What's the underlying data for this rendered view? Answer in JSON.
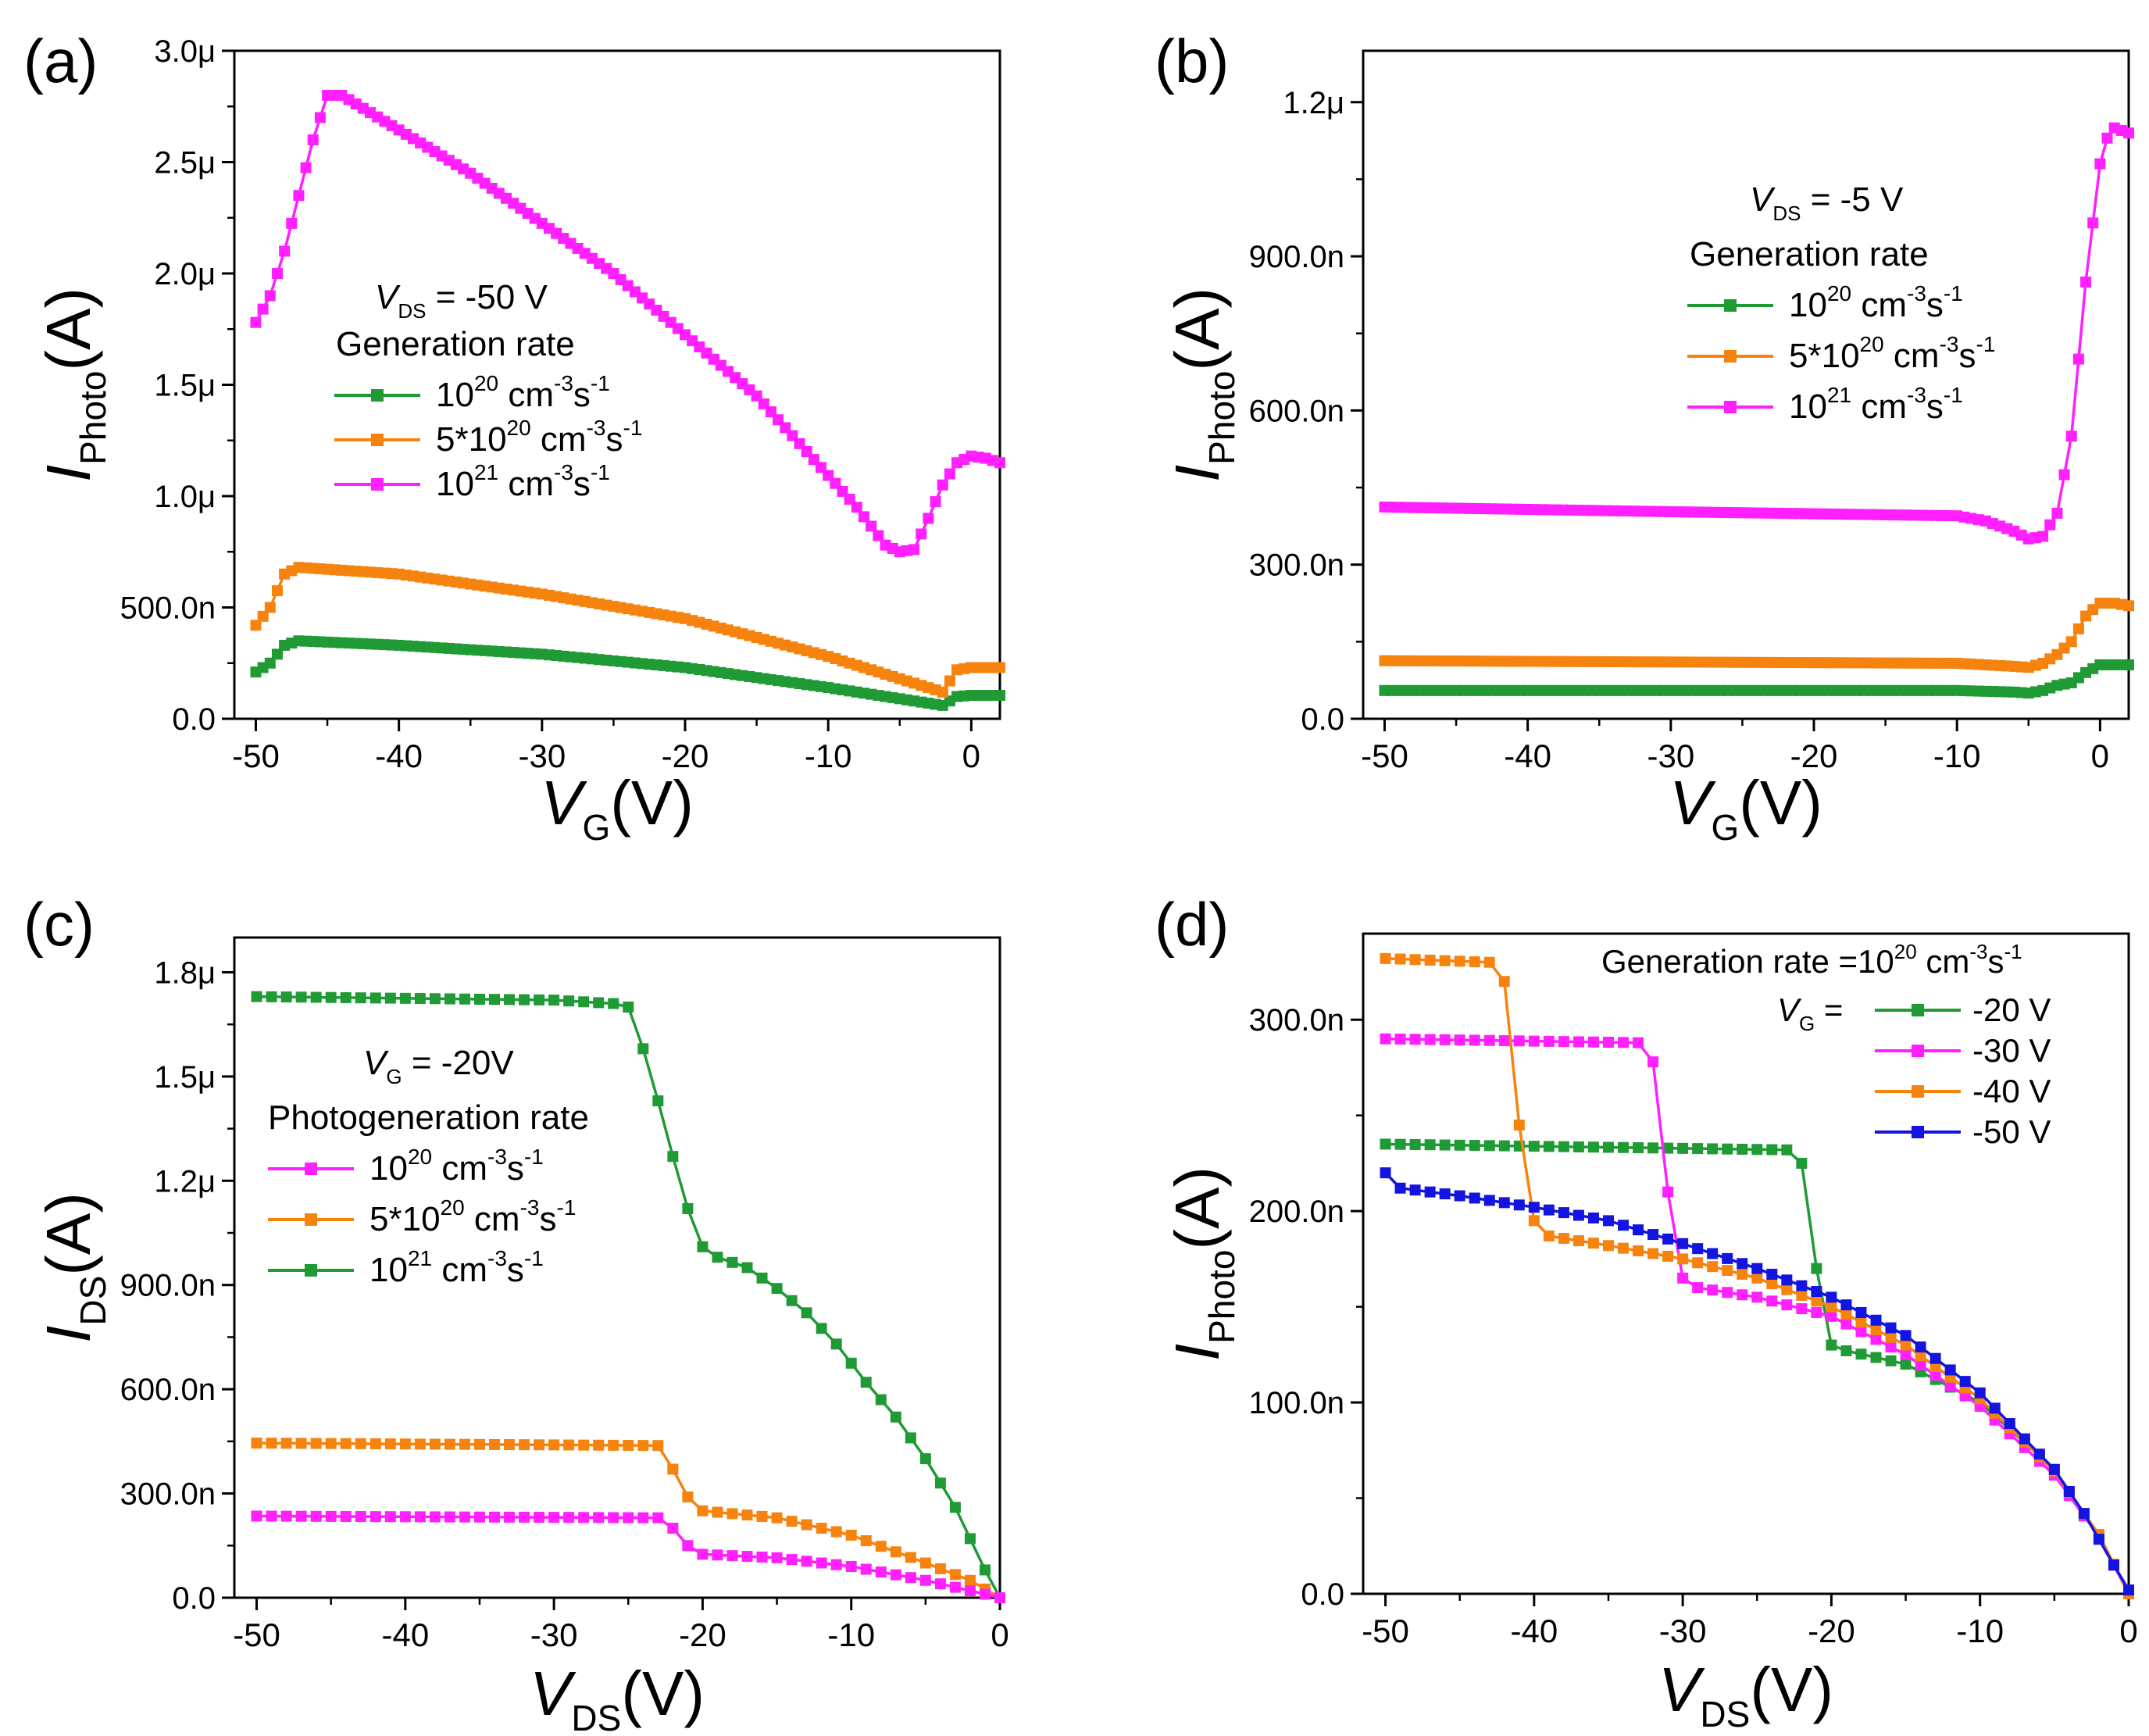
{
  "colors": {
    "green": "#1f9a34",
    "orange": "#f7830f",
    "magenta": "#ff1fff",
    "blue": "#1414e0"
  },
  "chart_data": [
    {
      "panel": "(a)",
      "type": "line",
      "xlim": [
        -51.5,
        2
      ],
      "ylim": [
        0,
        3e-06
      ],
      "xticks": [
        -50,
        -40,
        -30,
        -20,
        -10,
        0
      ],
      "xtick_labels": [
        "-50",
        "-40",
        "-30",
        "-20",
        "-10",
        "0"
      ],
      "yticks": [
        0,
        5e-07,
        1e-06,
        1.5e-06,
        2e-06,
        2.5e-06,
        3e-06
      ],
      "ytick_labels": [
        "0.0",
        "500.0n",
        "1.0μ",
        "1.5μ",
        "2.0μ",
        "2.5μ",
        "3.0μ"
      ],
      "xlabel": {
        "main": "V",
        "sub": "G",
        "unit": "(V)"
      },
      "ylabel": {
        "main": "I",
        "sub": "Photo",
        "unit": "(A)"
      },
      "annotation": {
        "var": "V",
        "sub": "DS",
        "text": " = -50 V",
        "title": "Generation rate"
      },
      "legend": [
        {
          "pre": "10",
          "sup1": "20",
          "mid": " cm",
          "sup2": "-3",
          "post": "s",
          "sup3": "-1",
          "color": "green"
        },
        {
          "pre": "5*10",
          "sup1": "20",
          "mid": " cm",
          "sup2": "-3",
          "post": "s",
          "sup3": "-1",
          "color": "orange"
        },
        {
          "pre": "10",
          "sup1": "21",
          "mid": " cm",
          "sup2": "-3",
          "post": "s",
          "sup3": "-1",
          "color": "magenta"
        }
      ],
      "series": [
        {
          "color": "green",
          "step": 0.5,
          "points": [
            [
              -50,
              2.1e-07
            ],
            [
              -49,
              2.5e-07
            ],
            [
              -48,
              3.3e-07
            ],
            [
              -47,
              3.5e-07
            ],
            [
              -40,
              3.3e-07
            ],
            [
              -30,
              2.9e-07
            ],
            [
              -20,
              2.3e-07
            ],
            [
              -10,
              1.4e-07
            ],
            [
              -4,
              8e-08
            ],
            [
              -2,
              6e-08
            ],
            [
              -1,
              1e-07
            ],
            [
              0,
              1.05e-07
            ],
            [
              2,
              1.05e-07
            ]
          ]
        },
        {
          "color": "orange",
          "step": 0.5,
          "points": [
            [
              -50,
              4.2e-07
            ],
            [
              -49,
              5e-07
            ],
            [
              -48,
              6.5e-07
            ],
            [
              -47,
              6.8e-07
            ],
            [
              -40,
              6.5e-07
            ],
            [
              -30,
              5.6e-07
            ],
            [
              -20,
              4.5e-07
            ],
            [
              -10,
              2.8e-07
            ],
            [
              -5,
              1.8e-07
            ],
            [
              -2,
              1.2e-07
            ],
            [
              -1,
              2.2e-07
            ],
            [
              0,
              2.3e-07
            ],
            [
              2,
              2.3e-07
            ]
          ]
        },
        {
          "color": "magenta",
          "step": 0.5,
          "points": [
            [
              -50,
              1.78e-06
            ],
            [
              -49,
              1.9e-06
            ],
            [
              -48,
              2.1e-06
            ],
            [
              -47,
              2.35e-06
            ],
            [
              -46,
              2.6e-06
            ],
            [
              -45,
              2.8e-06
            ],
            [
              -44,
              2.8e-06
            ],
            [
              -35,
              2.45e-06
            ],
            [
              -25,
              2e-06
            ],
            [
              -15,
              1.45e-06
            ],
            [
              -8,
              9.5e-07
            ],
            [
              -6,
              7.8e-07
            ],
            [
              -5,
              7.5e-07
            ],
            [
              -4,
              7.6e-07
            ],
            [
              -3,
              9e-07
            ],
            [
              -2,
              1.05e-06
            ],
            [
              -1,
              1.15e-06
            ],
            [
              0,
              1.18e-06
            ],
            [
              1,
              1.17e-06
            ],
            [
              2,
              1.15e-06
            ]
          ]
        }
      ]
    },
    {
      "panel": "(b)",
      "type": "line",
      "xlim": [
        -51.5,
        2
      ],
      "ylim": [
        0,
        1.3e-06
      ],
      "xticks": [
        -50,
        -40,
        -30,
        -20,
        -10,
        0
      ],
      "xtick_labels": [
        "-50",
        "-40",
        "-30",
        "-20",
        "-10",
        "0"
      ],
      "yticks": [
        0,
        3e-07,
        6e-07,
        9e-07,
        1.2e-06
      ],
      "ytick_labels": [
        "0.0",
        "300.0n",
        "600.0n",
        "900.0n",
        "1.2μ"
      ],
      "xlabel": {
        "main": "V",
        "sub": "G",
        "unit": "(V)"
      },
      "ylabel": {
        "main": "I",
        "sub": "Photo",
        "unit": "(A)"
      },
      "annotation": {
        "var": "V",
        "sub": "DS",
        "text": " = -5 V",
        "title": "Generation rate"
      },
      "legend": [
        {
          "pre": "10",
          "sup1": "20",
          "mid": " cm",
          "sup2": "-3",
          "post": "s",
          "sup3": "-1",
          "color": "green"
        },
        {
          "pre": "5*10",
          "sup1": "20",
          "mid": " cm",
          "sup2": "-3",
          "post": "s",
          "sup3": "-1",
          "color": "orange"
        },
        {
          "pre": "10",
          "sup1": "21",
          "mid": " cm",
          "sup2": "-3",
          "post": "s",
          "sup3": "-1",
          "color": "magenta"
        }
      ],
      "series": [
        {
          "color": "green",
          "step": 0.5,
          "points": [
            [
              -50,
              5.5e-08
            ],
            [
              -10,
              5.5e-08
            ],
            [
              -6,
              5.2e-08
            ],
            [
              -5,
              5e-08
            ],
            [
              -4,
              5.5e-08
            ],
            [
              -3,
              6.5e-08
            ],
            [
              -2,
              7e-08
            ],
            [
              -1,
              9e-08
            ],
            [
              0,
              1.05e-07
            ],
            [
              1,
              1.05e-07
            ],
            [
              2,
              1.05e-07
            ]
          ]
        },
        {
          "color": "orange",
          "step": 0.5,
          "points": [
            [
              -50,
              1.13e-07
            ],
            [
              -10,
              1.08e-07
            ],
            [
              -6,
              1.02e-07
            ],
            [
              -5,
              1e-07
            ],
            [
              -4,
              1.08e-07
            ],
            [
              -3,
              1.25e-07
            ],
            [
              -2,
              1.5e-07
            ],
            [
              -1,
              2e-07
            ],
            [
              0,
              2.25e-07
            ],
            [
              1,
              2.25e-07
            ],
            [
              2,
              2.2e-07
            ]
          ]
        },
        {
          "color": "magenta",
          "step": 0.5,
          "points": [
            [
              -50,
              4.12e-07
            ],
            [
              -30,
              4.03e-07
            ],
            [
              -10,
              3.95e-07
            ],
            [
              -8,
              3.85e-07
            ],
            [
              -6,
              3.65e-07
            ],
            [
              -5,
              3.5e-07
            ],
            [
              -4,
              3.55e-07
            ],
            [
              -3,
              4e-07
            ],
            [
              -2,
              5.5e-07
            ],
            [
              -1,
              8.5e-07
            ],
            [
              0,
              1.08e-06
            ],
            [
              0.5,
              1.13e-06
            ],
            [
              1,
              1.15e-06
            ],
            [
              2,
              1.14e-06
            ]
          ]
        }
      ]
    },
    {
      "panel": "(c)",
      "type": "line",
      "xlim": [
        -51.5,
        0
      ],
      "ylim": [
        0,
        1.9e-06
      ],
      "xticks": [
        -50,
        -40,
        -30,
        -20,
        -10,
        0
      ],
      "xtick_labels": [
        "-50",
        "-40",
        "-30",
        "-20",
        "-10",
        "0"
      ],
      "yticks": [
        0,
        3e-07,
        6e-07,
        9e-07,
        1.2e-06,
        1.5e-06,
        1.8e-06
      ],
      "ytick_labels": [
        "0.0",
        "300.0n",
        "600.0n",
        "900.0n",
        "1.2μ",
        "1.5μ",
        "1.8μ"
      ],
      "xlabel": {
        "main": "V",
        "sub": "DS",
        "unit": "(V)"
      },
      "ylabel": {
        "main": "I",
        "sub": "DS",
        "unit": "(A)"
      },
      "annotation": {
        "var": "V",
        "sub": "G",
        "text": " = -20V",
        "title": "Photogeneration rate"
      },
      "legend": [
        {
          "pre": "10",
          "sup1": "20",
          "mid": " cm",
          "sup2": "-3",
          "post": "s",
          "sup3": "-1",
          "color": "magenta"
        },
        {
          "pre": "5*10",
          "sup1": "20",
          "mid": " cm",
          "sup2": "-3",
          "post": "s",
          "sup3": "-1",
          "color": "orange"
        },
        {
          "pre": "10",
          "sup1": "21",
          "mid": " cm",
          "sup2": "-3",
          "post": "s",
          "sup3": "-1",
          "color": "green"
        }
      ],
      "series": [
        {
          "color": "green",
          "step": 1,
          "points": [
            [
              -50,
              1.73e-06
            ],
            [
              -30,
              1.72e-06
            ],
            [
              -26,
              1.71e-06
            ],
            [
              -25,
              1.7e-06
            ],
            [
              -24,
              1.58e-06
            ],
            [
              -23,
              1.43e-06
            ],
            [
              -22,
              1.27e-06
            ],
            [
              -21,
              1.12e-06
            ],
            [
              -20,
              1.01e-06
            ],
            [
              -19,
              9.8e-07
            ],
            [
              -17,
              9.5e-07
            ],
            [
              -15,
              8.9e-07
            ],
            [
              -13,
              8.2e-07
            ],
            [
              -11,
              7.3e-07
            ],
            [
              -9,
              6.2e-07
            ],
            [
              -7,
              5.2e-07
            ],
            [
              -5,
              4e-07
            ],
            [
              -3,
              2.6e-07
            ],
            [
              -2,
              1.7e-07
            ],
            [
              -1,
              8e-08
            ],
            [
              0,
              0
            ]
          ]
        },
        {
          "color": "orange",
          "step": 1,
          "points": [
            [
              -50,
              4.45e-07
            ],
            [
              -23,
              4.38e-07
            ],
            [
              -22,
              3.7e-07
            ],
            [
              -21,
              2.9e-07
            ],
            [
              -20,
              2.5e-07
            ],
            [
              -15,
              2.3e-07
            ],
            [
              -10,
              1.8e-07
            ],
            [
              -5,
              1e-07
            ],
            [
              -2,
              5e-08
            ],
            [
              0,
              0
            ]
          ]
        },
        {
          "color": "magenta",
          "step": 1,
          "points": [
            [
              -50,
              2.35e-07
            ],
            [
              -23,
              2.3e-07
            ],
            [
              -22,
              2e-07
            ],
            [
              -21,
              1.5e-07
            ],
            [
              -20,
              1.25e-07
            ],
            [
              -15,
              1.15e-07
            ],
            [
              -10,
              9e-08
            ],
            [
              -5,
              5e-08
            ],
            [
              -2,
              2e-08
            ],
            [
              0,
              0
            ]
          ]
        }
      ]
    },
    {
      "panel": "(d)",
      "type": "line",
      "xlim": [
        -51.5,
        0
      ],
      "ylim": [
        0,
        3.45e-07
      ],
      "xticks": [
        -50,
        -40,
        -30,
        -20,
        -10,
        0
      ],
      "xtick_labels": [
        "-50",
        "-40",
        "-30",
        "-20",
        "-10",
        "0"
      ],
      "yticks": [
        0,
        1e-07,
        2e-07,
        3e-07
      ],
      "ytick_labels": [
        "0.0",
        "100.0n",
        "200.0n",
        "300.0n"
      ],
      "xlabel": {
        "main": "V",
        "sub": "DS",
        "unit": "(V)"
      },
      "ylabel": {
        "main": "I",
        "sub": "Photo",
        "unit": "(A)"
      },
      "annotation": {
        "title": "Generation rate =10",
        "sup1": "20",
        "mid": " cm",
        "sup2": "-3",
        "post": "s",
        "sup3": "-1",
        "vg_var": "V",
        "vg_sub": "G",
        "vg_eq": " ="
      },
      "legend": [
        {
          "label": "-20 V",
          "color": "green"
        },
        {
          "label": "-30 V",
          "color": "magenta"
        },
        {
          "label": "-40 V",
          "color": "orange"
        },
        {
          "label": "-50 V",
          "color": "blue"
        }
      ],
      "series": [
        {
          "color": "green",
          "step": 1,
          "points": [
            [
              -50,
              2.35e-07
            ],
            [
              -23,
              2.32e-07
            ],
            [
              -22,
              2.25e-07
            ],
            [
              -21,
              1.7e-07
            ],
            [
              -20,
              1.3e-07
            ],
            [
              -19,
              1.27e-07
            ],
            [
              -15,
              1.2e-07
            ],
            [
              -10,
              1e-07
            ],
            [
              -5,
              6.5e-08
            ],
            [
              -2,
              3e-08
            ],
            [
              0,
              0
            ]
          ]
        },
        {
          "color": "magenta",
          "step": 1,
          "points": [
            [
              -50,
              2.9e-07
            ],
            [
              -33,
              2.88e-07
            ],
            [
              -32,
              2.78e-07
            ],
            [
              -31,
              2.1e-07
            ],
            [
              -30,
              1.65e-07
            ],
            [
              -29,
              1.6e-07
            ],
            [
              -25,
              1.55e-07
            ],
            [
              -20,
              1.45e-07
            ],
            [
              -15,
              1.25e-07
            ],
            [
              -10,
              9.8e-08
            ],
            [
              -5,
              6.2e-08
            ],
            [
              -2,
              3e-08
            ],
            [
              0,
              0
            ]
          ]
        },
        {
          "color": "orange",
          "step": 1,
          "points": [
            [
              -50,
              3.32e-07
            ],
            [
              -43,
              3.3e-07
            ],
            [
              -42,
              3.2e-07
            ],
            [
              -41,
              2.45e-07
            ],
            [
              -40,
              1.95e-07
            ],
            [
              -39,
              1.87e-07
            ],
            [
              -35,
              1.82e-07
            ],
            [
              -30,
              1.75e-07
            ],
            [
              -25,
              1.65e-07
            ],
            [
              -20,
              1.5e-07
            ],
            [
              -15,
              1.3e-07
            ],
            [
              -10,
              1.02e-07
            ],
            [
              -5,
              6.4e-08
            ],
            [
              -2,
              3.1e-08
            ],
            [
              0,
              0
            ]
          ]
        },
        {
          "color": "blue",
          "step": 1,
          "points": [
            [
              -50,
              2.2e-07
            ],
            [
              -49,
              2.12e-07
            ],
            [
              -45,
              2.08e-07
            ],
            [
              -40,
              2.02e-07
            ],
            [
              -35,
              1.95e-07
            ],
            [
              -30,
              1.83e-07
            ],
            [
              -25,
              1.7e-07
            ],
            [
              -20,
              1.55e-07
            ],
            [
              -15,
              1.35e-07
            ],
            [
              -10,
              1.05e-07
            ],
            [
              -5,
              6.5e-08
            ],
            [
              -3,
              4.2e-08
            ],
            [
              -1,
              1.5e-08
            ],
            [
              0,
              2e-09
            ]
          ]
        }
      ]
    }
  ]
}
